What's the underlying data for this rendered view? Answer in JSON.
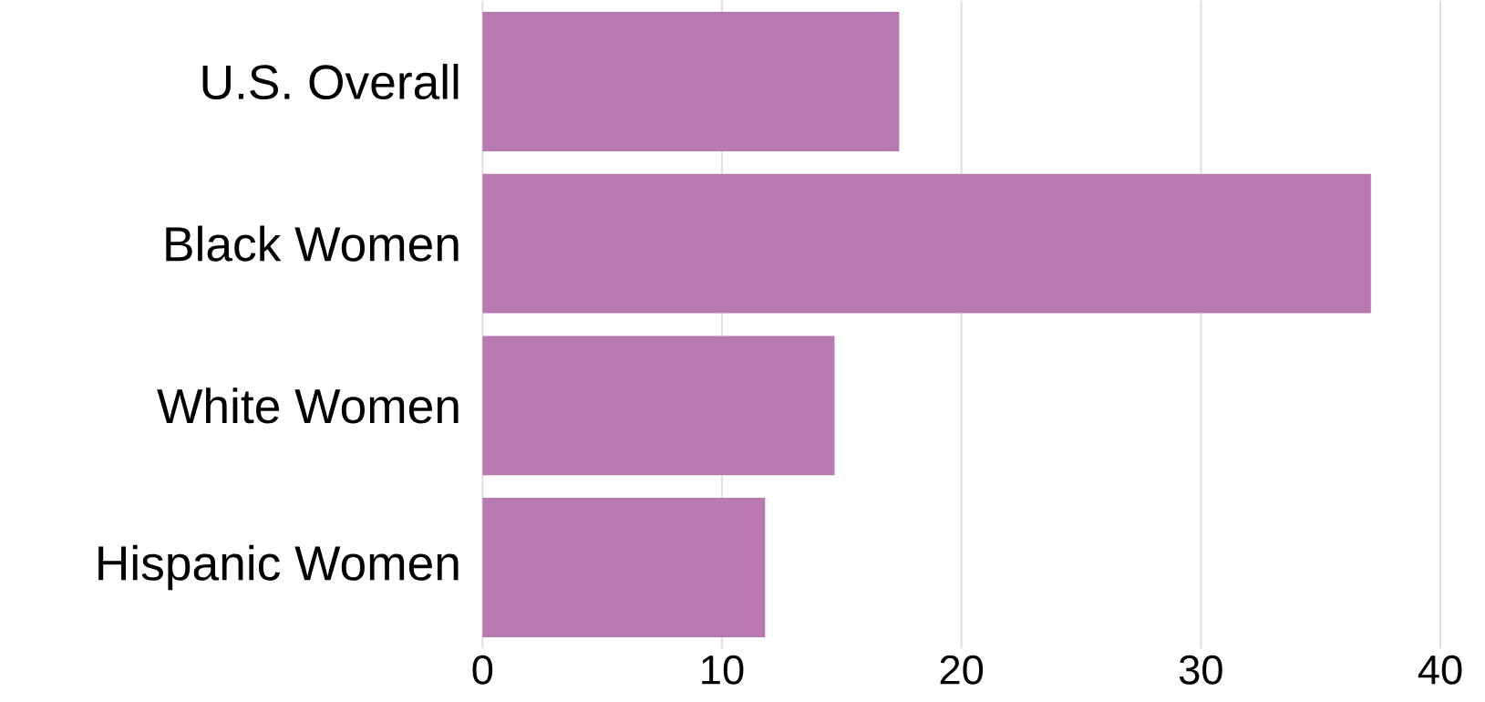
{
  "chart_data": {
    "type": "bar",
    "orientation": "horizontal",
    "categories": [
      "U.S. Overall",
      "Black Women",
      "White Women",
      "Hispanic Women"
    ],
    "values": [
      17.4,
      37.1,
      14.7,
      11.8
    ],
    "color": "#b878b0",
    "xlim": [
      0,
      40
    ],
    "xticks": [
      0,
      10,
      20,
      30,
      40
    ],
    "grid": "x"
  }
}
